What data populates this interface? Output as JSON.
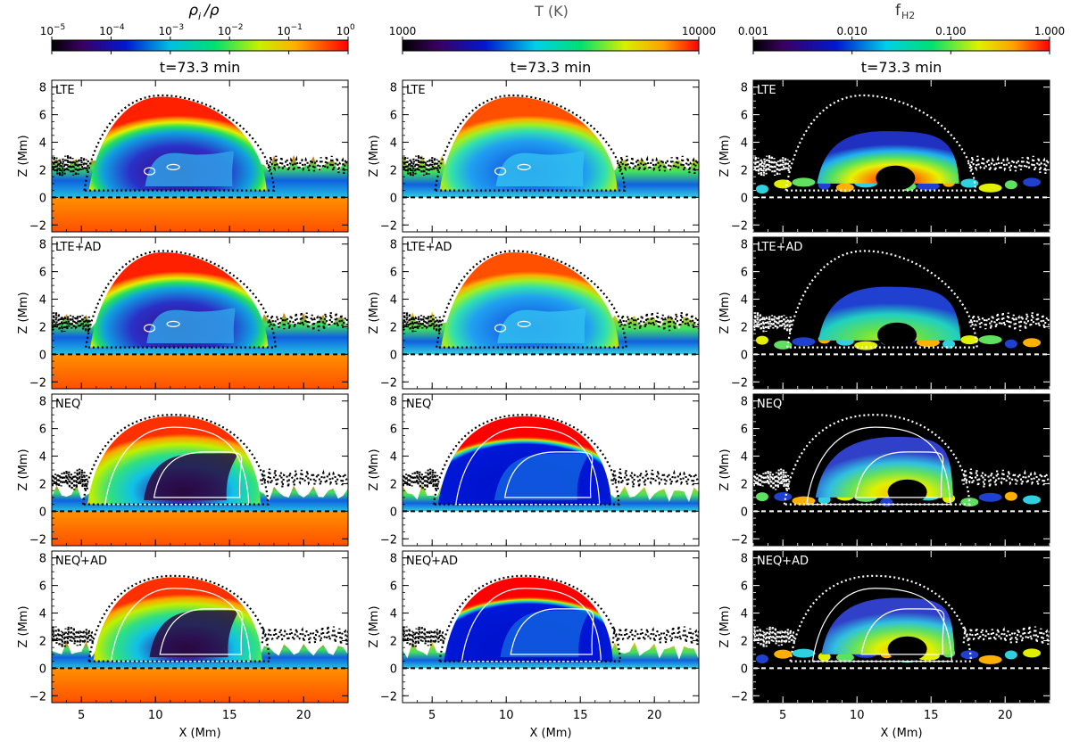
{
  "columns": [
    {
      "quantity_label": "ρ",
      "quantity_sub": "i",
      "quantity_suffix": "/ρ",
      "colorbar_ticks": [
        "10",
        "10",
        "10",
        "10",
        "10",
        "10"
      ],
      "colorbar_exps": [
        "−5",
        "−4",
        "−3",
        "−2",
        "−1",
        "0"
      ],
      "colormap": "rainbow-ionization",
      "time_label": "t=73.3 min"
    },
    {
      "quantity_label": "T (K)",
      "quantity_sub": "",
      "quantity_suffix": "",
      "colorbar_ticks": [
        "1000",
        "10000"
      ],
      "colorbar_exps": [],
      "colormap": "rainbow-temperature",
      "time_label": "t=73.3 min"
    },
    {
      "quantity_label": "f",
      "quantity_sub": "H2",
      "quantity_suffix": "",
      "colorbar_ticks": [
        "0.001",
        "0.010",
        "0.100",
        "1.000"
      ],
      "colorbar_exps": [],
      "colormap": "rainbow-h2",
      "time_label": "t=73.3 min"
    }
  ],
  "row_labels": [
    "LTE",
    "LTE+AD",
    "NEQ",
    "NEQ+AD"
  ],
  "axes": {
    "xlabel": "X (Mm)",
    "ylabel": "Z (Mm)",
    "xticks": [
      "5",
      "10",
      "15",
      "20"
    ],
    "yticks": [
      "8",
      "6",
      "4",
      "2",
      "0",
      "−2"
    ],
    "xrange_mm": [
      3,
      23
    ],
    "yrange_mm": [
      -2.5,
      8.5
    ]
  },
  "colors": {
    "panel_bg_col3": "#000000",
    "photosphere_line": "#000000",
    "photosphere_line_col3": "#ffffff"
  }
}
